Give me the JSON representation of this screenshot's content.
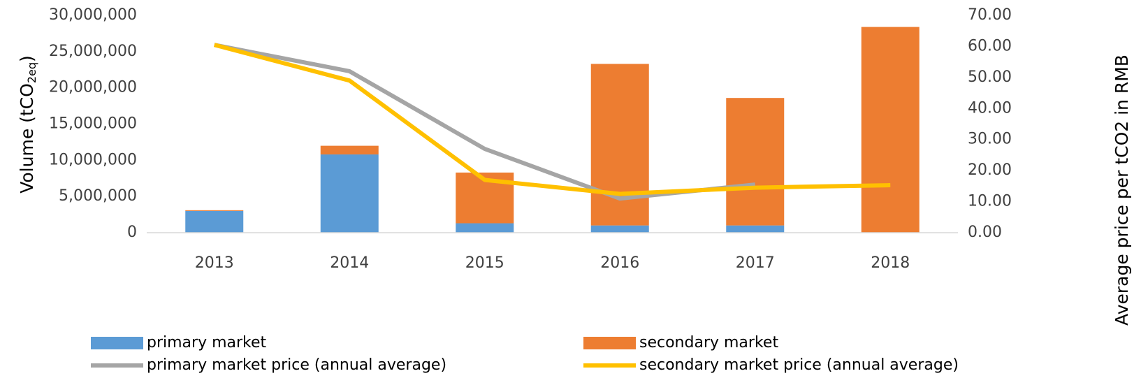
{
  "chart_data": {
    "type": "bar_line",
    "ylabel_parts": [
      "Volume (tCO",
      "2eq",
      ")"
    ],
    "y2label": "Average  price per tCO2 in RMB",
    "categories": [
      "2013",
      "2014",
      "2015",
      "2016",
      "2017",
      "2018"
    ],
    "series": [
      {
        "name": "primary market",
        "type": "bar",
        "color": "#5b9bd5",
        "values": [
          3000000,
          10800000,
          1300000,
          1000000,
          1000000,
          null
        ]
      },
      {
        "name": "secondary market",
        "type": "bar",
        "color": "#ed7d31",
        "values": [
          100000,
          1200000,
          7000000,
          22300000,
          17600000,
          28400000
        ]
      },
      {
        "name": "primary market price (annual average)",
        "type": "line",
        "axis": "y2",
        "color": "#a5a5a5",
        "values": [
          60.5,
          52,
          27,
          11,
          15.5,
          null
        ]
      },
      {
        "name": "secondary market price (annual average)",
        "type": "line",
        "axis": "y2",
        "color": "#ffc000",
        "values": [
          60.5,
          49,
          17,
          12.5,
          14.5,
          15.3
        ]
      }
    ],
    "stacked": true,
    "ylim": [
      0,
      30000000
    ],
    "yticks": [
      0,
      {
        "value": 5000000,
        "label": "5,000,000"
      },
      {
        "value": 10000000,
        "label": "10,000,000"
      },
      {
        "value": 15000000,
        "label": "15,000,000"
      },
      {
        "value": 20000000,
        "label": "20,000,000"
      },
      {
        "value": 25000000,
        "label": "25,000,000"
      },
      {
        "value": 30000000,
        "label": "30,000,000"
      }
    ],
    "y2lim": [
      0,
      70
    ],
    "y2ticks": [
      {
        "value": 0,
        "label": "0.00"
      },
      {
        "value": 10,
        "label": "10.00"
      },
      {
        "value": 20,
        "label": "20.00"
      },
      {
        "value": 30,
        "label": "30.00"
      },
      {
        "value": 40,
        "label": "40.00"
      },
      {
        "value": 50,
        "label": "50.00"
      },
      {
        "value": 60,
        "label": "60.00"
      },
      {
        "value": 70,
        "label": "70.00"
      }
    ],
    "legend": "bottom",
    "grid": false
  }
}
